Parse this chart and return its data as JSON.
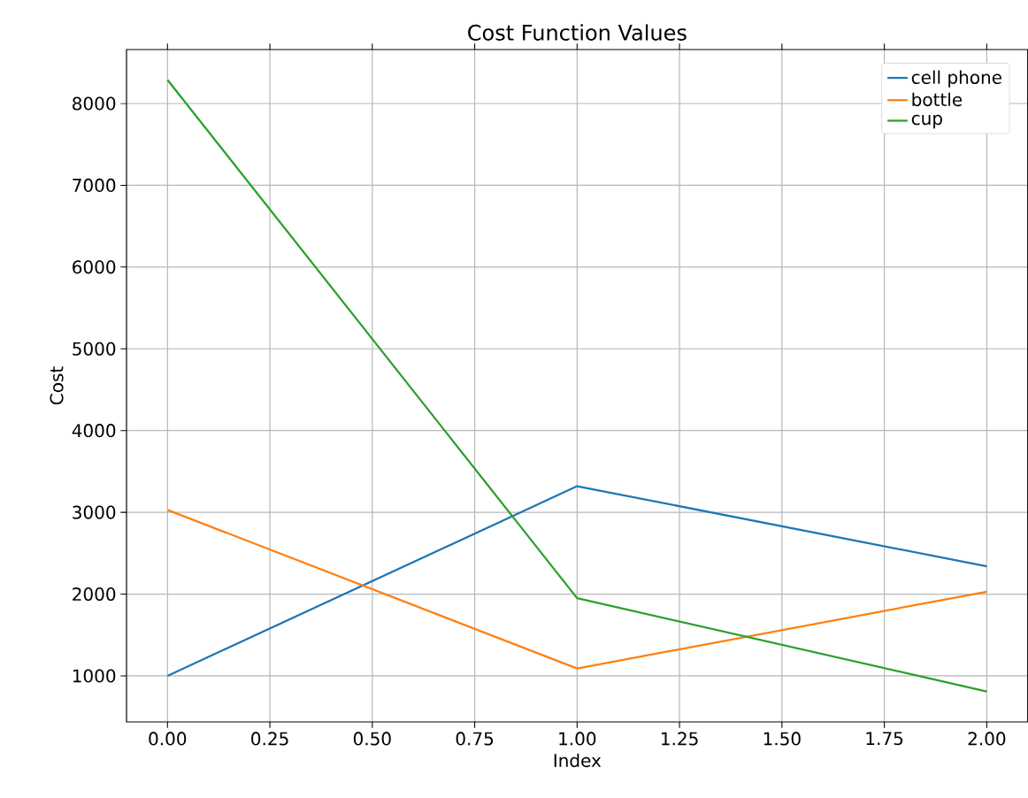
{
  "chart_data": {
    "type": "line",
    "title": "Cost Function Values",
    "xlabel": "Index",
    "ylabel": "Cost",
    "x": [
      0,
      1,
      2
    ],
    "series": [
      {
        "name": "cell phone",
        "color": "#1f77b4",
        "values": [
          1000,
          3320,
          2340
        ]
      },
      {
        "name": "bottle",
        "color": "#ff7f0e",
        "values": [
          3030,
          1090,
          2030
        ]
      },
      {
        "name": "cup",
        "color": "#2ca02c",
        "values": [
          8290,
          1950,
          810
        ]
      }
    ],
    "xlim": [
      -0.1,
      2.1
    ],
    "ylim": [
      437,
      8660
    ],
    "xticks": [
      {
        "value": 0,
        "label": "0.00"
      },
      {
        "value": 0.25,
        "label": "0.25"
      },
      {
        "value": 0.5,
        "label": "0.50"
      },
      {
        "value": 0.75,
        "label": "0.75"
      },
      {
        "value": 1,
        "label": "1.00"
      },
      {
        "value": 1.25,
        "label": "1.25"
      },
      {
        "value": 1.5,
        "label": "1.50"
      },
      {
        "value": 1.75,
        "label": "1.75"
      },
      {
        "value": 2,
        "label": "2.00"
      }
    ],
    "yticks": [
      1000,
      2000,
      3000,
      4000,
      5000,
      6000,
      7000,
      8000
    ],
    "grid": true,
    "legend": "top right",
    "marker": "none",
    "line_style": "solid"
  }
}
